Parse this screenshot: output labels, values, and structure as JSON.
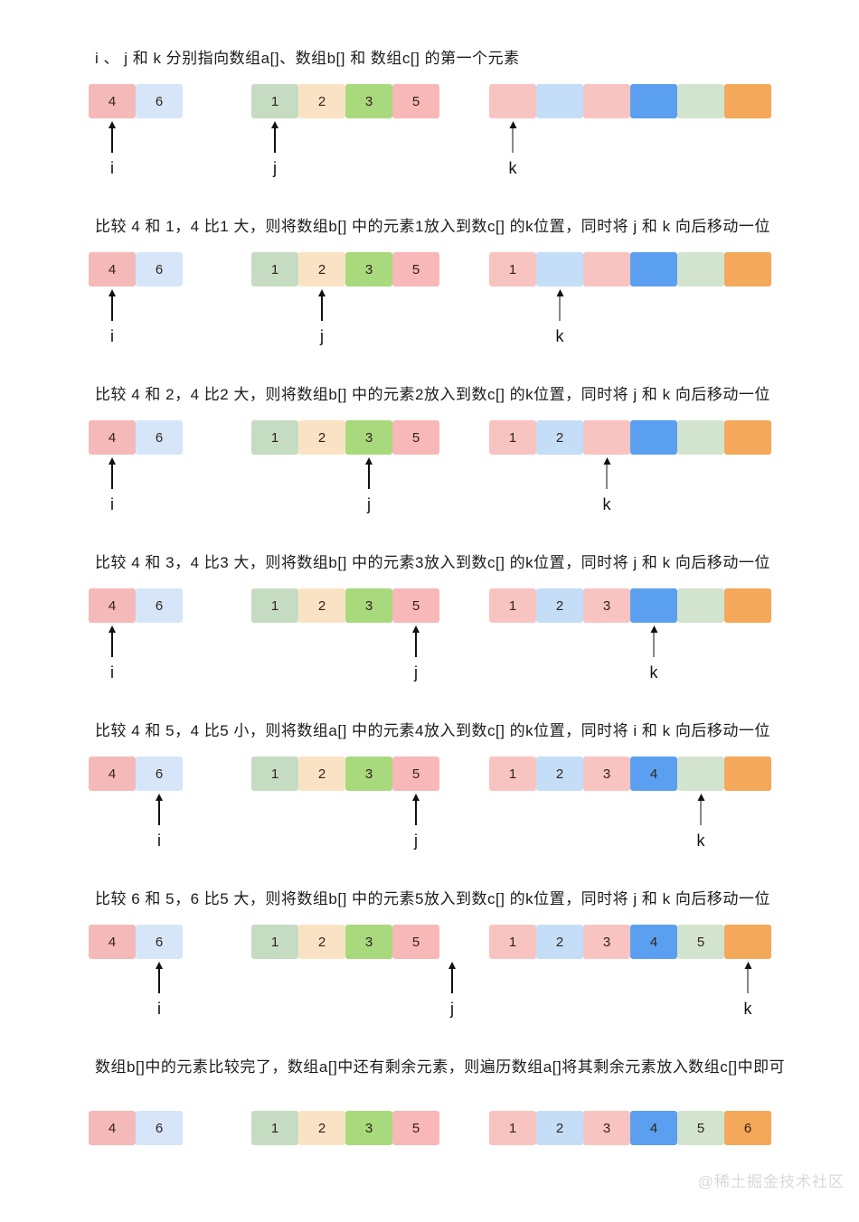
{
  "watermark": "@稀土掘金技术社区",
  "palette": {
    "a": [
      "#f5b9ba",
      "#d6e6f8"
    ],
    "b": [
      "#c6dcc2",
      "#fae3c4",
      "#a9d97d",
      "#f7b8b7"
    ],
    "c": [
      "#f8c4c2",
      "#c4def7",
      "#f8c4c2",
      "#5ba0f0",
      "#d2e4ce",
      "#f4a95a"
    ]
  },
  "pointer_labels": {
    "a": "i",
    "b": "j",
    "c": "k"
  },
  "sections": [
    {
      "caption": "i 、 j 和 k 分别指向数组a[]、数组b[] 和 数组c[] 的第一个元素",
      "a": [
        "4",
        "6"
      ],
      "b": [
        "1",
        "2",
        "3",
        "5"
      ],
      "c": [
        "",
        "",
        "",
        "",
        "",
        ""
      ],
      "pointers": {
        "i": 0,
        "j": 0,
        "k": 0
      }
    },
    {
      "caption": "比较 4 和 1，4 比1 大，则将数组b[] 中的元素1放入到数c[] 的k位置，同时将 j 和 k 向后移动一位",
      "a": [
        "4",
        "6"
      ],
      "b": [
        "1",
        "2",
        "3",
        "5"
      ],
      "c": [
        "1",
        "",
        "",
        "",
        "",
        ""
      ],
      "pointers": {
        "i": 0,
        "j": 1,
        "k": 1
      }
    },
    {
      "caption": "比较 4 和 2，4 比2 大，则将数组b[] 中的元素2放入到数c[] 的k位置，同时将 j 和 k 向后移动一位",
      "a": [
        "4",
        "6"
      ],
      "b": [
        "1",
        "2",
        "3",
        "5"
      ],
      "c": [
        "1",
        "2",
        "",
        "",
        "",
        ""
      ],
      "pointers": {
        "i": 0,
        "j": 2,
        "k": 2
      }
    },
    {
      "caption": "比较 4 和 3，4 比3 大，则将数组b[] 中的元素3放入到数c[] 的k位置，同时将 j 和 k 向后移动一位",
      "a": [
        "4",
        "6"
      ],
      "b": [
        "1",
        "2",
        "3",
        "5"
      ],
      "c": [
        "1",
        "2",
        "3",
        "",
        "",
        ""
      ],
      "pointers": {
        "i": 0,
        "j": 3,
        "k": 3
      }
    },
    {
      "caption": "比较 4 和 5，4 比5 小，则将数组a[] 中的元素4放入到数c[] 的k位置，同时将 i 和 k 向后移动一位",
      "a": [
        "4",
        "6"
      ],
      "b": [
        "1",
        "2",
        "3",
        "5"
      ],
      "c": [
        "1",
        "2",
        "3",
        "4",
        "",
        ""
      ],
      "pointers": {
        "i": 1,
        "j": 3,
        "k": 4
      }
    },
    {
      "caption": "比较 6 和 5，6 比5 大，则将数组b[] 中的元素5放入到数c[] 的k位置，同时将 j 和 k 向后移动一位",
      "a": [
        "4",
        "6"
      ],
      "b": [
        "1",
        "2",
        "3",
        "5"
      ],
      "c": [
        "1",
        "2",
        "3",
        "4",
        "5",
        ""
      ],
      "pointers": {
        "i": 1,
        "j": 4,
        "k": 5
      }
    },
    {
      "caption": "数组b[]中的元素比较完了，数组a[]中还有剩余元素，则遍历数组a[]将其剩余元素放入数组c[]中即可",
      "a": [
        "4",
        "6"
      ],
      "b": [
        "1",
        "2",
        "3",
        "5"
      ],
      "c": [
        "1",
        "2",
        "3",
        "4",
        "5",
        "6"
      ],
      "pointers": null
    }
  ]
}
